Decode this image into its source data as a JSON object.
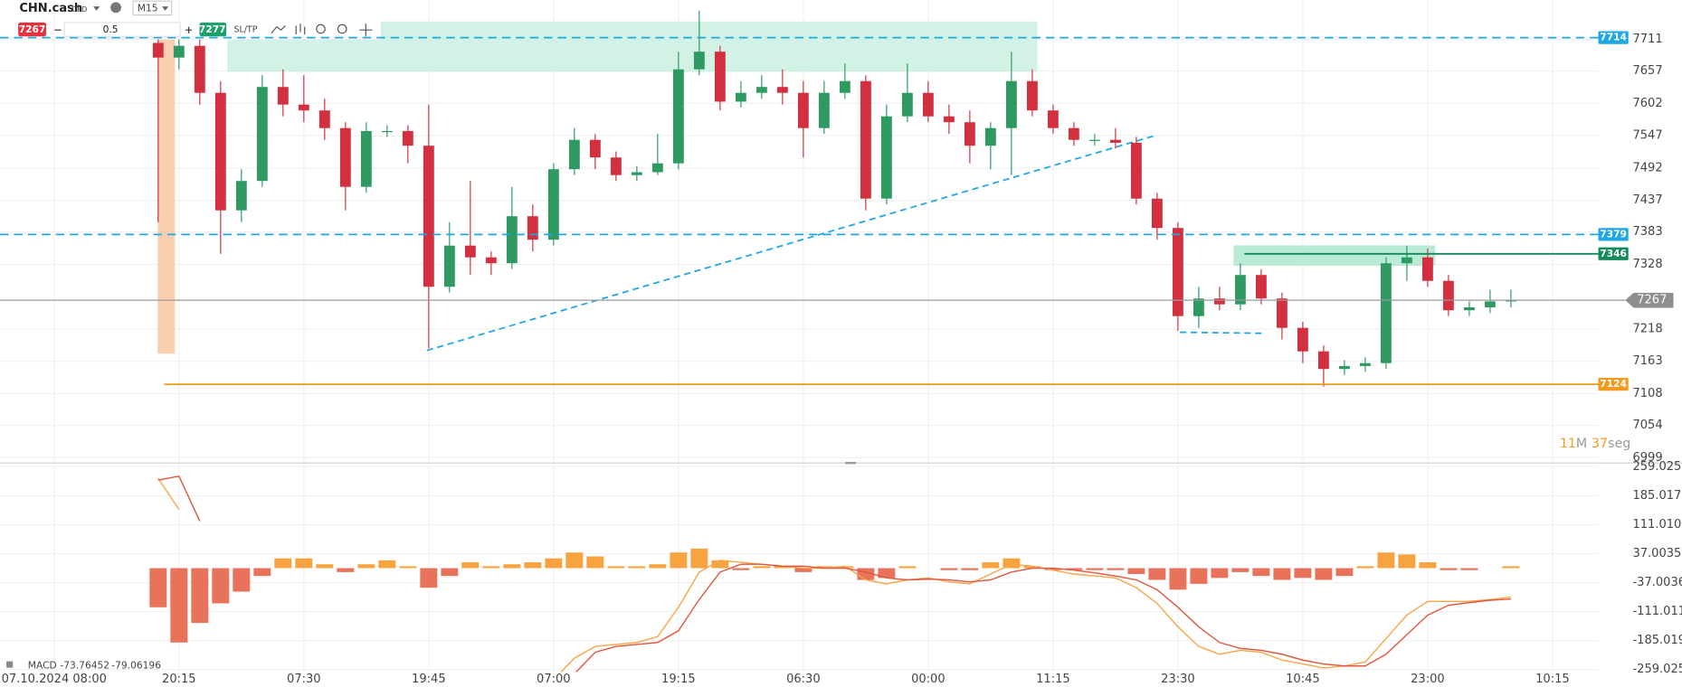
{
  "toolbar": {
    "symbol": "CHN.cash",
    "kind": "CFD",
    "timeframe": "M15",
    "sell": 7267,
    "volume": 0.5,
    "buy": 7277,
    "sltp": "SL/TP"
  },
  "chart_data": [
    {
      "type": "candlestick",
      "x": [
        5,
        6,
        7,
        8,
        9,
        10,
        11,
        12,
        13,
        14,
        15,
        16,
        17,
        18,
        19,
        20,
        21,
        22,
        23,
        24,
        25,
        26,
        27,
        28,
        29,
        30,
        31,
        32,
        33,
        34,
        35,
        36,
        37,
        38,
        39,
        40,
        41,
        42,
        43,
        44,
        45,
        46,
        47,
        48,
        49,
        50,
        51,
        52,
        53,
        54,
        55,
        56,
        57,
        58,
        59,
        60,
        61,
        62,
        63,
        64,
        65,
        66,
        67,
        68,
        69,
        70
      ],
      "open": [
        7705,
        7680,
        7700,
        7620,
        7420,
        7470,
        7630,
        7600,
        7590,
        7560,
        7460,
        7555,
        7555,
        7530,
        7290,
        7360,
        7340,
        7330,
        7410,
        7370,
        7490,
        7540,
        7510,
        7480,
        7485,
        7500,
        7660,
        7690,
        7605,
        7620,
        7630,
        7620,
        7560,
        7620,
        7640,
        7440,
        7580,
        7620,
        7580,
        7570,
        7530,
        7560,
        7640,
        7590,
        7560,
        7540,
        7540,
        7535,
        7440,
        7390,
        7240,
        7270,
        7260,
        7310,
        7270,
        7220,
        7180,
        7150,
        7155,
        7160,
        7330,
        7340,
        7300,
        7250,
        7255,
        7265
      ],
      "high": [
        7711,
        7711,
        7711,
        7640,
        7490,
        7650,
        7660,
        7650,
        7610,
        7570,
        7570,
        7565,
        7565,
        7600,
        7400,
        7470,
        7350,
        7460,
        7430,
        7500,
        7560,
        7550,
        7520,
        7495,
        7550,
        7690,
        7760,
        7700,
        7640,
        7650,
        7660,
        7640,
        7640,
        7670,
        7650,
        7600,
        7670,
        7640,
        7600,
        7590,
        7570,
        7690,
        7660,
        7600,
        7570,
        7550,
        7560,
        7545,
        7450,
        7400,
        7290,
        7290,
        7330,
        7320,
        7280,
        7230,
        7190,
        7165,
        7170,
        7340,
        7360,
        7355,
        7310,
        7265,
        7285,
        7285
      ],
      "low": [
        7400,
        7660,
        7600,
        7346,
        7400,
        7460,
        7580,
        7570,
        7540,
        7420,
        7450,
        7545,
        7500,
        7185,
        7280,
        7310,
        7310,
        7320,
        7350,
        7360,
        7480,
        7490,
        7470,
        7470,
        7480,
        7490,
        7650,
        7590,
        7595,
        7610,
        7600,
        7510,
        7550,
        7610,
        7420,
        7430,
        7570,
        7570,
        7550,
        7500,
        7490,
        7480,
        7580,
        7550,
        7530,
        7530,
        7525,
        7430,
        7370,
        7215,
        7220,
        7250,
        7250,
        7260,
        7200,
        7160,
        7120,
        7140,
        7145,
        7150,
        7300,
        7290,
        7240,
        7240,
        7245,
        7255
      ],
      "close": [
        7680,
        7700,
        7620,
        7420,
        7470,
        7630,
        7600,
        7590,
        7560,
        7460,
        7555,
        7555,
        7530,
        7290,
        7360,
        7340,
        7330,
        7410,
        7370,
        7490,
        7540,
        7510,
        7480,
        7485,
        7500,
        7660,
        7690,
        7605,
        7620,
        7630,
        7620,
        7560,
        7620,
        7640,
        7440,
        7580,
        7620,
        7580,
        7570,
        7530,
        7560,
        7640,
        7590,
        7560,
        7540,
        7540,
        7535,
        7440,
        7390,
        7240,
        7270,
        7260,
        7310,
        7270,
        7220,
        7180,
        7150,
        7155,
        7160,
        7330,
        7340,
        7300,
        7250,
        7255,
        7265,
        7267
      ],
      "up_color": "#2e9a62",
      "down_color": "#d2303f",
      "xlim": [
        -2.6,
        74.2
      ],
      "ylim": [
        6990,
        7778
      ],
      "xticks": [
        {
          "value": 0,
          "label": "07.10.2024 08:00"
        },
        {
          "value": 6,
          "label": "20:15"
        },
        {
          "value": 12,
          "label": "07:30"
        },
        {
          "value": 18,
          "label": "19:45"
        },
        {
          "value": 24,
          "label": "07:00"
        },
        {
          "value": 30,
          "label": "19:15"
        },
        {
          "value": 36,
          "label": "06:30"
        },
        {
          "value": 42,
          "label": "00:00"
        },
        {
          "value": 48,
          "label": "11:15"
        },
        {
          "value": 54,
          "label": "23:30"
        },
        {
          "value": 60,
          "label": "10:45"
        },
        {
          "value": 66,
          "label": "23:00"
        },
        {
          "value": 72,
          "label": "10:15"
        }
      ],
      "yticks": [
        7711,
        7657,
        7602,
        7547,
        7492,
        7437,
        7383,
        7328,
        7218,
        7163,
        7108,
        7054,
        6999
      ],
      "grid": true,
      "hlines": [
        {
          "value": 7714,
          "color": "#1ea7e4",
          "dashed": true
        },
        {
          "value": 7379,
          "color": "#1ea7e4",
          "dashed": true
        },
        {
          "value": 7346,
          "color": "#138a5a",
          "dashed": false
        },
        {
          "value": 7124,
          "color": "#f39a1e",
          "dashed": false
        }
      ],
      "last_price": 7267,
      "countdown": {
        "minutes": 11,
        "minutes_unit": "M",
        "seconds": 37,
        "seconds_unit": "seg"
      }
    },
    {
      "type": "macd",
      "name": "MACD",
      "current": [
        -73.76452,
        -79.06196
      ],
      "x": [
        5,
        6,
        7,
        8,
        9,
        10,
        11,
        12,
        13,
        14,
        15,
        16,
        17,
        18,
        19,
        20,
        21,
        22,
        23,
        24,
        25,
        26,
        27,
        28,
        29,
        30,
        31,
        32,
        33,
        34,
        35,
        36,
        37,
        38,
        39,
        40,
        41,
        42,
        43,
        44,
        45,
        46,
        47,
        48,
        49,
        50,
        51,
        52,
        53,
        54,
        55,
        56,
        57,
        58,
        59,
        60,
        61,
        62,
        63,
        64,
        65,
        66,
        67,
        68,
        69,
        70
      ],
      "values": [
        -100,
        -190,
        -140,
        -90,
        -60,
        -20,
        25,
        25,
        10,
        -10,
        10,
        20,
        5,
        -50,
        -20,
        15,
        5,
        10,
        15,
        25,
        40,
        30,
        5,
        5,
        10,
        40,
        50,
        20,
        -5,
        5,
        5,
        -10,
        5,
        5,
        -30,
        -25,
        5,
        0,
        -5,
        -5,
        15,
        25,
        5,
        -5,
        -5,
        -5,
        -5,
        -15,
        -30,
        -55,
        -40,
        -25,
        -10,
        -20,
        -30,
        -25,
        -30,
        -20,
        5,
        40,
        35,
        15,
        -5,
        -5,
        0,
        5
      ],
      "pos_color": "#f7a440",
      "neg_color": "#e8735a",
      "series": [
        {
          "color": "#f9a64a",
          "values": [
            230,
            150,
            null,
            null,
            null,
            null,
            null,
            null,
            null,
            null,
            null,
            null,
            null,
            null,
            null,
            null,
            null,
            null,
            null,
            -285,
            -230,
            -200,
            -195,
            -190,
            -175,
            -100,
            -10,
            20,
            15,
            10,
            5,
            0,
            0,
            5,
            -30,
            -40,
            -30,
            -25,
            -35,
            -40,
            -15,
            10,
            5,
            -5,
            -15,
            -20,
            -25,
            -50,
            -90,
            -150,
            -200,
            -220,
            -210,
            -215,
            -235,
            -245,
            -255,
            -250,
            -240,
            -180,
            -120,
            -85,
            -85,
            -85,
            -80,
            -74
          ]
        },
        {
          "color": "#e0583f",
          "values": [
            225,
            235,
            120,
            null,
            null,
            null,
            null,
            null,
            null,
            null,
            null,
            null,
            null,
            null,
            null,
            null,
            null,
            null,
            null,
            null,
            -270,
            -215,
            -200,
            -195,
            -190,
            -160,
            -80,
            -10,
            10,
            10,
            5,
            5,
            0,
            0,
            -10,
            -25,
            -30,
            -28,
            -30,
            -35,
            -30,
            -10,
            0,
            0,
            -5,
            -12,
            -20,
            -30,
            -55,
            -100,
            -150,
            -190,
            -205,
            -210,
            -220,
            -235,
            -245,
            -250,
            -250,
            -220,
            -170,
            -120,
            -95,
            -88,
            -82,
            -79
          ]
        }
      ],
      "xlim": [
        -2.6,
        74.2
      ],
      "ylim": [
        -301,
        266
      ],
      "yticks": [
        259.0251,
        185.0179,
        111.0107,
        37.00358,
        -37.0036,
        -111.011,
        -185.019,
        -259.025
      ]
    }
  ]
}
